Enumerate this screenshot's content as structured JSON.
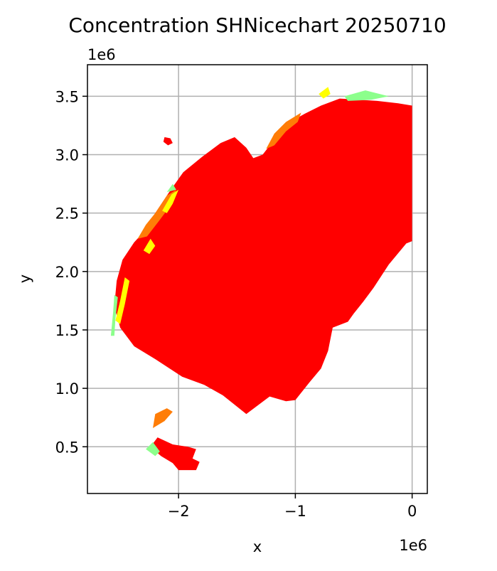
{
  "chart_data": {
    "type": "map",
    "title": "Concentration SHNicechart 20250710",
    "xlabel": "x",
    "ylabel": "y",
    "x_scale_label": "1e6",
    "y_scale_label": "1e6",
    "xlim": [
      -2.78,
      0.13
    ],
    "ylim": [
      0.1,
      3.77
    ],
    "grid": true,
    "x_ticks": [
      {
        "value": -2.0,
        "label": "−2"
      },
      {
        "value": -1.0,
        "label": "−1"
      },
      {
        "value": 0.0,
        "label": "0"
      }
    ],
    "y_ticks": [
      {
        "value": 0.5,
        "label": "0.5"
      },
      {
        "value": 1.0,
        "label": "1.0"
      },
      {
        "value": 1.5,
        "label": "1.5"
      },
      {
        "value": 2.0,
        "label": "2.0"
      },
      {
        "value": 2.5,
        "label": "2.5"
      },
      {
        "value": 3.0,
        "label": "3.0"
      },
      {
        "value": 3.5,
        "label": "3.5"
      }
    ],
    "concentration_classes": [
      {
        "color": "#ff0000"
      },
      {
        "color": "#ff7d07"
      },
      {
        "color": "#ffff00"
      },
      {
        "color": "#8cff8c"
      }
    ],
    "regions": [
      {
        "color": "#ff0000",
        "points": [
          [
            0.0,
            3.42
          ],
          [
            0.0,
            2.26
          ],
          [
            -0.05,
            2.24
          ],
          [
            -0.2,
            2.06
          ],
          [
            -0.33,
            1.86
          ],
          [
            -0.42,
            1.74
          ],
          [
            -0.5,
            1.64
          ],
          [
            -0.55,
            1.57
          ],
          [
            -0.68,
            1.52
          ],
          [
            -0.72,
            1.32
          ],
          [
            -0.78,
            1.17
          ],
          [
            -0.88,
            1.05
          ],
          [
            -1.0,
            0.9
          ],
          [
            -1.08,
            0.89
          ],
          [
            -1.22,
            0.93
          ],
          [
            -1.42,
            0.78
          ],
          [
            -1.62,
            0.94
          ],
          [
            -1.78,
            1.03
          ],
          [
            -1.97,
            1.1
          ],
          [
            -2.2,
            1.25
          ],
          [
            -2.38,
            1.36
          ],
          [
            -2.5,
            1.52
          ],
          [
            -2.55,
            1.7
          ],
          [
            -2.53,
            1.92
          ],
          [
            -2.48,
            2.1
          ],
          [
            -2.38,
            2.25
          ],
          [
            -2.26,
            2.38
          ],
          [
            -2.2,
            2.5
          ],
          [
            -2.08,
            2.68
          ],
          [
            -1.96,
            2.85
          ],
          [
            -1.8,
            2.98
          ],
          [
            -1.64,
            3.1
          ],
          [
            -1.52,
            3.15
          ],
          [
            -1.42,
            3.06
          ],
          [
            -1.36,
            2.97
          ],
          [
            -1.28,
            3.0
          ],
          [
            -1.18,
            3.13
          ],
          [
            -1.08,
            3.26
          ],
          [
            -0.92,
            3.35
          ],
          [
            -0.78,
            3.42
          ],
          [
            -0.62,
            3.48
          ],
          [
            -0.3,
            3.46
          ],
          [
            -0.12,
            3.44
          ]
        ]
      },
      {
        "color": "#ff0000",
        "points": [
          [
            -2.18,
            0.58
          ],
          [
            -2.05,
            0.52
          ],
          [
            -1.92,
            0.5
          ],
          [
            -1.85,
            0.48
          ],
          [
            -1.88,
            0.4
          ],
          [
            -1.82,
            0.37
          ],
          [
            -1.85,
            0.3
          ],
          [
            -2.0,
            0.3
          ],
          [
            -2.05,
            0.36
          ],
          [
            -2.15,
            0.42
          ],
          [
            -2.24,
            0.5
          ]
        ]
      },
      {
        "color": "#ff0000",
        "points": [
          [
            -2.12,
            3.15
          ],
          [
            -2.07,
            3.14
          ],
          [
            -2.05,
            3.1
          ],
          [
            -2.09,
            3.08
          ],
          [
            -2.13,
            3.11
          ]
        ]
      },
      {
        "color": "#ff7d07",
        "points": [
          [
            -2.35,
            2.28
          ],
          [
            -2.28,
            2.4
          ],
          [
            -2.2,
            2.5
          ],
          [
            -2.1,
            2.65
          ],
          [
            -2.02,
            2.7
          ],
          [
            -2.08,
            2.55
          ],
          [
            -2.17,
            2.43
          ],
          [
            -2.27,
            2.3
          ]
        ]
      },
      {
        "color": "#ff7d07",
        "points": [
          [
            -1.25,
            3.05
          ],
          [
            -1.18,
            3.18
          ],
          [
            -1.08,
            3.28
          ],
          [
            -0.95,
            3.36
          ],
          [
            -0.98,
            3.28
          ],
          [
            -1.08,
            3.2
          ],
          [
            -1.18,
            3.08
          ]
        ]
      },
      {
        "color": "#ff7d07",
        "points": [
          [
            -2.2,
            0.78
          ],
          [
            -2.1,
            0.83
          ],
          [
            -2.05,
            0.8
          ],
          [
            -2.12,
            0.72
          ],
          [
            -2.22,
            0.66
          ]
        ]
      },
      {
        "color": "#ffff00",
        "points": [
          [
            -2.54,
            1.58
          ],
          [
            -2.5,
            1.75
          ],
          [
            -2.46,
            1.95
          ],
          [
            -2.42,
            1.92
          ],
          [
            -2.46,
            1.72
          ],
          [
            -2.5,
            1.55
          ]
        ]
      },
      {
        "color": "#ffff00",
        "points": [
          [
            -2.14,
            2.52
          ],
          [
            -2.06,
            2.66
          ],
          [
            -2.0,
            2.7
          ],
          [
            -2.05,
            2.58
          ],
          [
            -2.1,
            2.5
          ]
        ]
      },
      {
        "color": "#ffff00",
        "points": [
          [
            -2.3,
            2.18
          ],
          [
            -2.24,
            2.28
          ],
          [
            -2.2,
            2.22
          ],
          [
            -2.25,
            2.15
          ]
        ]
      },
      {
        "color": "#ffff00",
        "points": [
          [
            -0.8,
            3.52
          ],
          [
            -0.72,
            3.58
          ],
          [
            -0.7,
            3.52
          ],
          [
            -0.76,
            3.48
          ]
        ]
      },
      {
        "color": "#8cff8c",
        "points": [
          [
            -2.58,
            1.45
          ],
          [
            -2.56,
            1.65
          ],
          [
            -2.55,
            1.8
          ],
          [
            -2.52,
            1.78
          ],
          [
            -2.54,
            1.6
          ],
          [
            -2.55,
            1.45
          ]
        ]
      },
      {
        "color": "#8cff8c",
        "points": [
          [
            -0.58,
            3.5
          ],
          [
            -0.4,
            3.55
          ],
          [
            -0.2,
            3.5
          ],
          [
            -0.35,
            3.47
          ],
          [
            -0.55,
            3.46
          ]
        ]
      },
      {
        "color": "#8cff8c",
        "points": [
          [
            -2.1,
            2.68
          ],
          [
            -2.05,
            2.75
          ],
          [
            -2.02,
            2.7
          ]
        ]
      },
      {
        "color": "#8cff8c",
        "points": [
          [
            -2.28,
            0.48
          ],
          [
            -2.2,
            0.42
          ],
          [
            -2.16,
            0.46
          ],
          [
            -2.22,
            0.54
          ]
        ]
      }
    ]
  }
}
